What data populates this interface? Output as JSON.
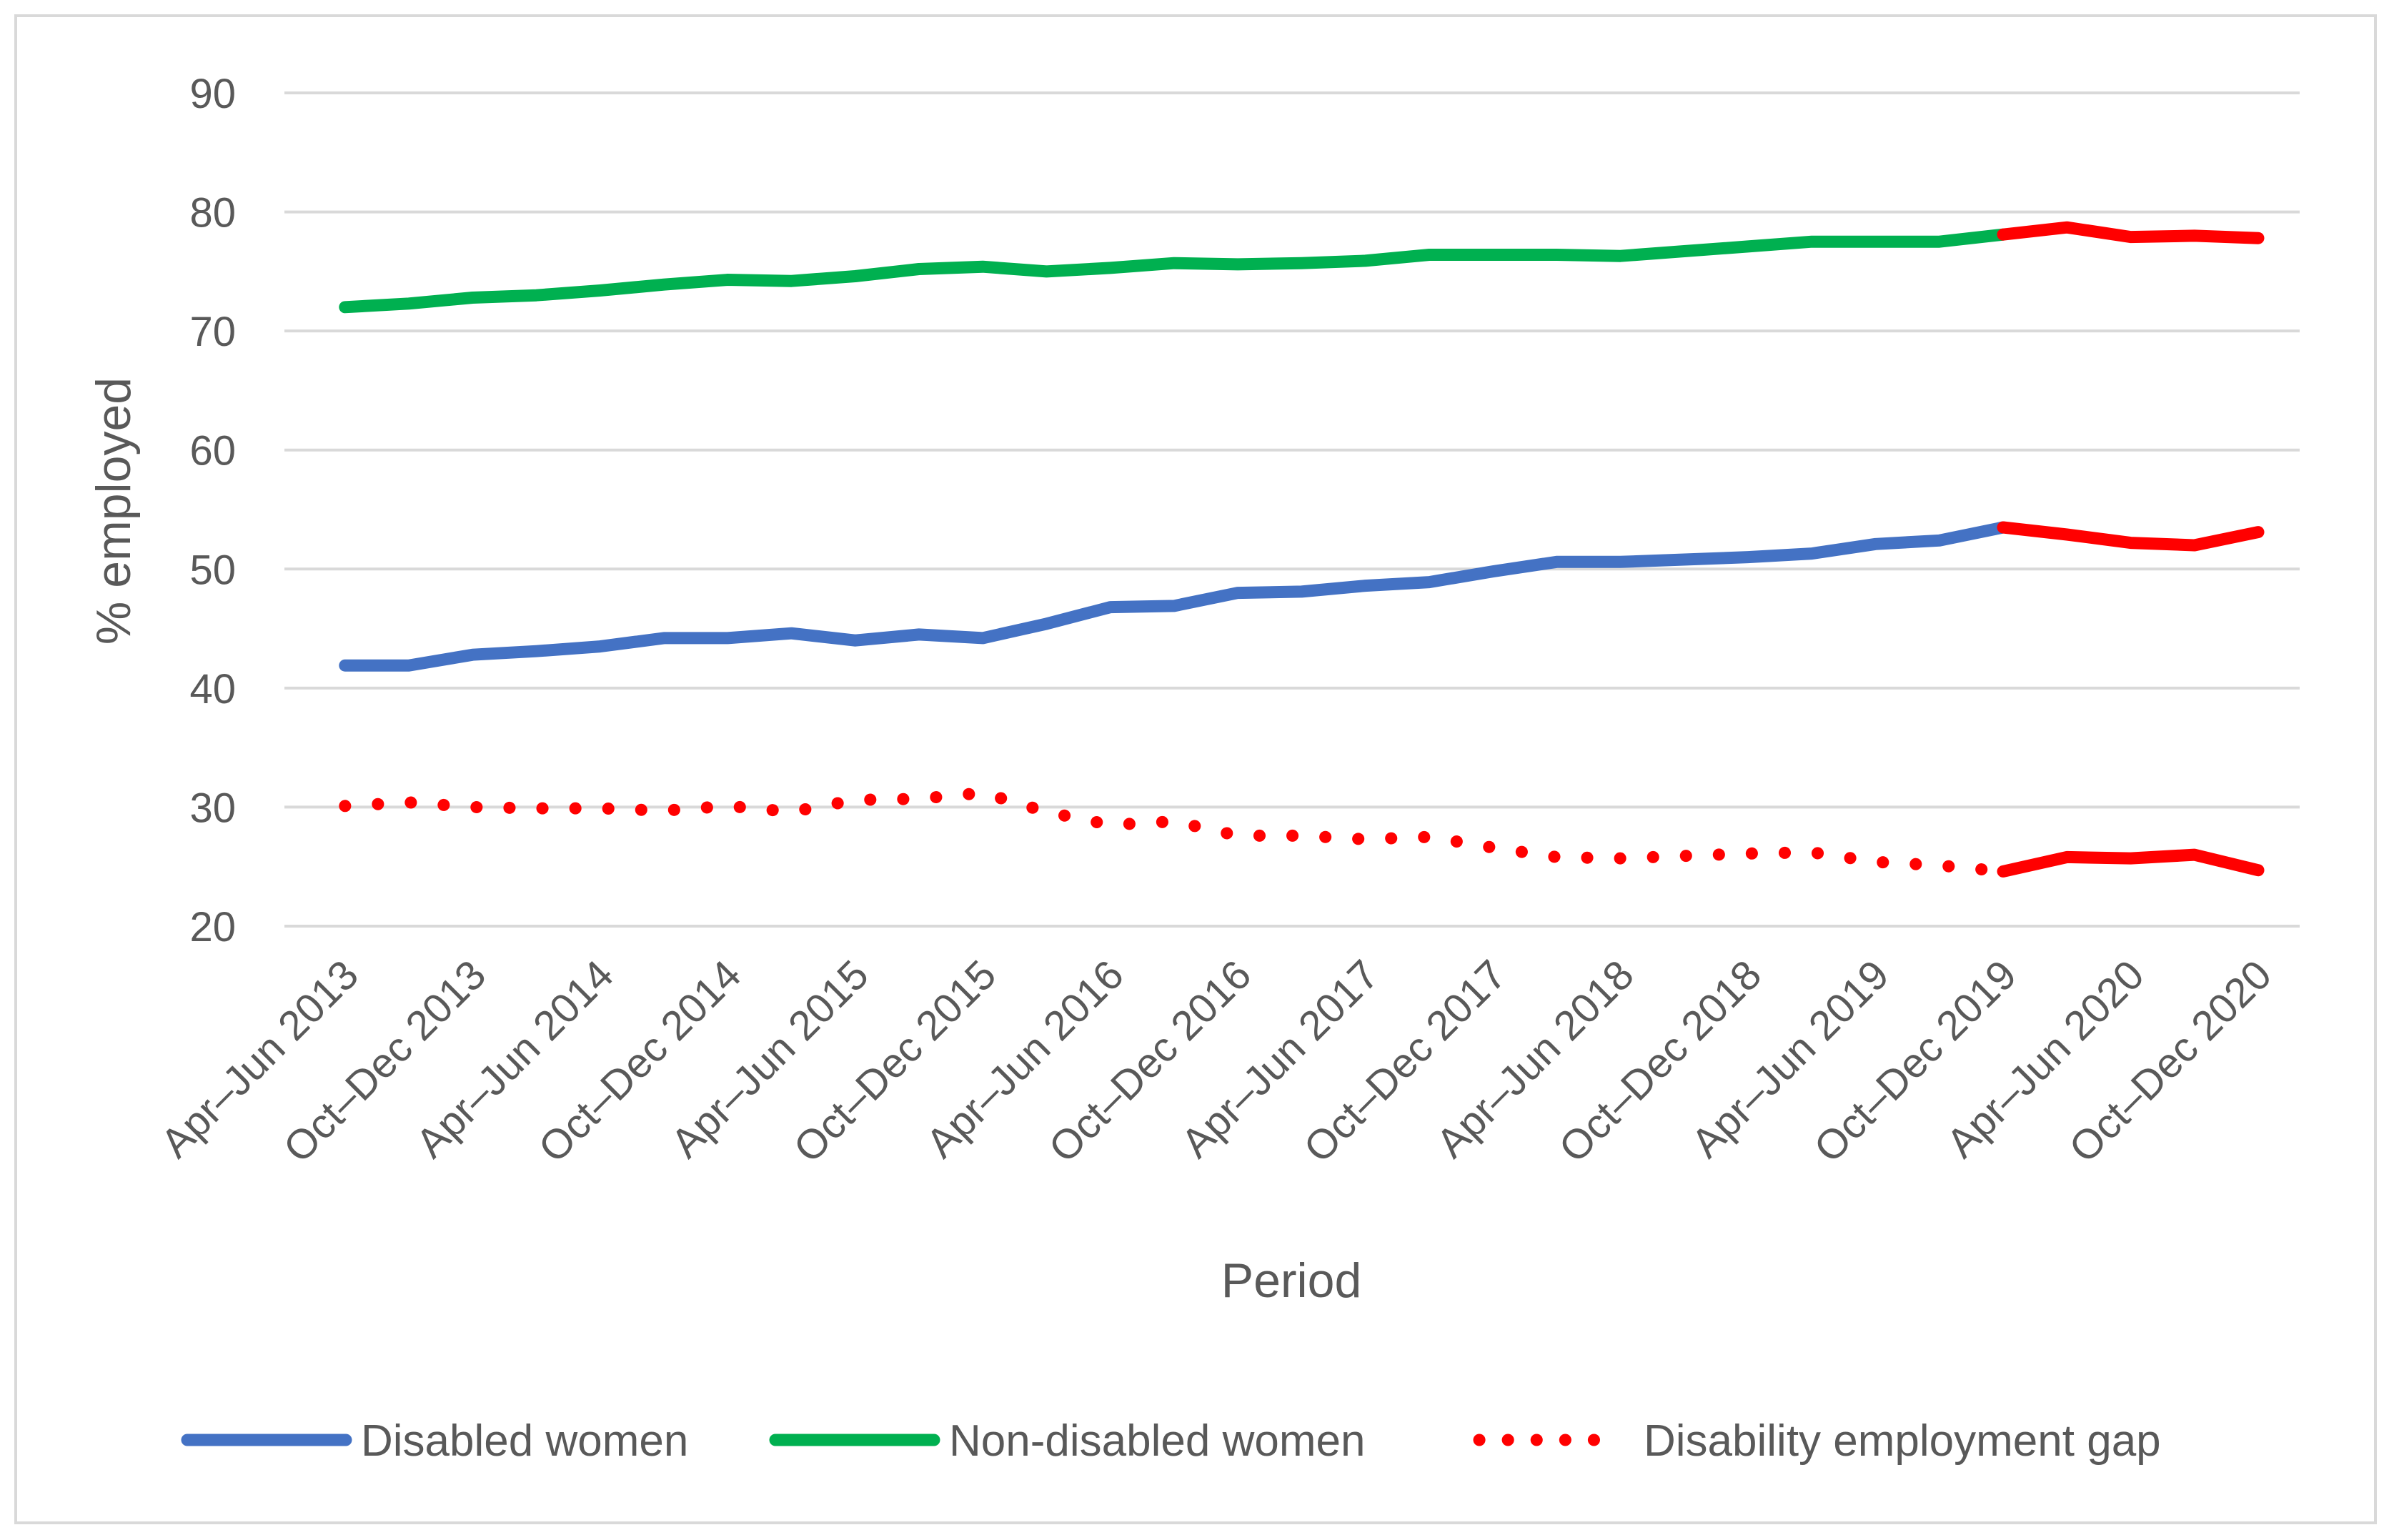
{
  "chart_data": {
    "type": "line",
    "title": "",
    "xlabel": "Period",
    "ylabel": "% employed",
    "ylim": [
      20,
      90
    ],
    "yticks": [
      20,
      30,
      40,
      50,
      60,
      70,
      80,
      90
    ],
    "grid": true,
    "legend_position": "bottom",
    "x": [
      "Apr–Jun 2013",
      "Jul–Sep 2013",
      "Oct–Dec 2013",
      "Jan–Mar 2014",
      "Apr–Jun 2014",
      "Jul–Sep 2014",
      "Oct–Dec 2014",
      "Jan–Mar 2015",
      "Apr–Jun 2015",
      "Jul–Sep 2015",
      "Oct–Dec 2015",
      "Jan–Mar 2016",
      "Apr–Jun 2016",
      "Jul–Sep 2016",
      "Oct–Dec 2016",
      "Jan–Mar 2017",
      "Apr–Jun 2017",
      "Jul–Sep 2017",
      "Oct–Dec 2017",
      "Jan–Mar 2018",
      "Apr–Jun 2018",
      "Jul–Sep 2018",
      "Oct–Dec 2018",
      "Jan–Mar 2019",
      "Apr–Jun 2019",
      "Jul–Sep 2019",
      "Oct–Dec 2019",
      "Jan–Mar 2020",
      "Apr–Jun 2020",
      "Jul–Sep 2020",
      "Oct–Dec 2020"
    ],
    "xtick_labels": [
      "Apr–Jun 2013",
      "Oct–Dec 2013",
      "Apr–Jun 2014",
      "Oct–Dec 2014",
      "Apr–Jun 2015",
      "Oct–Dec 2015",
      "Apr–Jun 2016",
      "Oct–Dec 2016",
      "Apr–Jun 2017",
      "Oct–Dec 2017",
      "Apr–Jun 2018",
      "Oct–Dec 2018",
      "Apr–Jun 2019",
      "Oct–Dec 2019",
      "Apr–Jun 2020",
      "Oct–Dec 2020"
    ],
    "highlight_from_index": 26,
    "highlight_color": "#ff0000",
    "series": [
      {
        "name": "Disabled women",
        "color": "#4472c4",
        "style": "solid",
        "values": [
          41.9,
          41.9,
          42.8,
          43.1,
          43.5,
          44.2,
          44.2,
          44.6,
          44.0,
          44.5,
          44.2,
          45.4,
          46.8,
          46.9,
          48.0,
          48.1,
          48.6,
          48.9,
          49.8,
          50.6,
          50.6,
          50.8,
          51.0,
          51.3,
          52.1,
          52.4,
          53.5,
          52.9,
          52.2,
          52.0,
          53.1
        ]
      },
      {
        "name": "Non-disabled women",
        "color": "#00b050",
        "style": "solid",
        "values": [
          72.0,
          72.3,
          72.8,
          73.0,
          73.4,
          73.9,
          74.3,
          74.2,
          74.6,
          75.2,
          75.4,
          75.0,
          75.3,
          75.7,
          75.6,
          75.7,
          75.9,
          76.4,
          76.4,
          76.4,
          76.3,
          76.7,
          77.1,
          77.5,
          77.5,
          77.5,
          78.1,
          78.7,
          77.9,
          78.0,
          77.8
        ]
      },
      {
        "name": "Disability employment gap",
        "color": "#ff0000",
        "style": "dotted",
        "values": [
          30.1,
          30.4,
          30.0,
          29.9,
          29.9,
          29.7,
          30.1,
          29.6,
          30.6,
          30.7,
          31.2,
          29.6,
          28.5,
          28.8,
          27.6,
          27.6,
          27.3,
          27.5,
          26.6,
          25.8,
          25.7,
          25.9,
          26.1,
          26.2,
          25.4,
          25.1,
          24.6,
          25.8,
          25.7,
          26.0,
          24.7
        ]
      }
    ]
  }
}
